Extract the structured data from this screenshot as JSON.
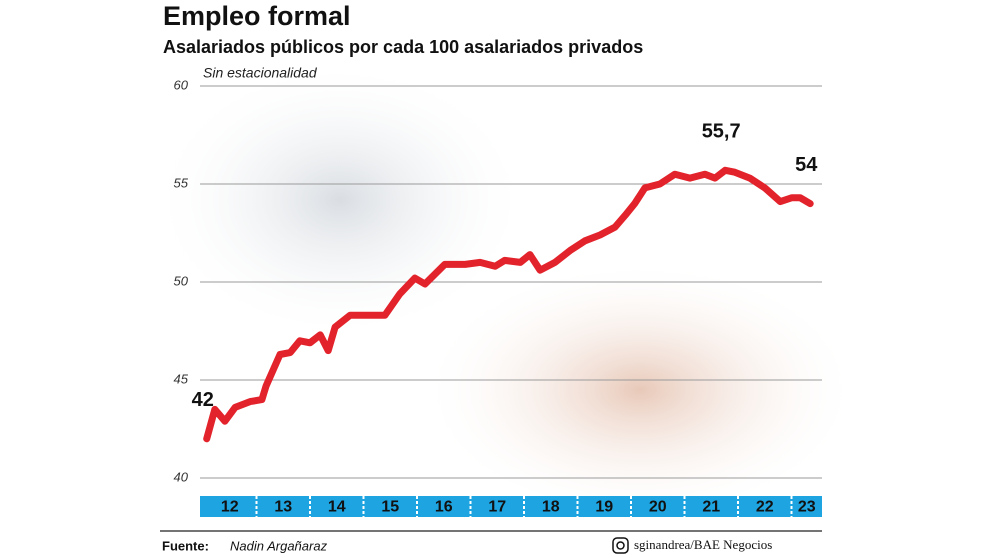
{
  "chart_data": {
    "type": "line",
    "title": "Empleo formal",
    "subtitle": "Asalariados públicos por cada 100 asalariados privados",
    "note": "Sin estacionalidad",
    "source_label": "Fuente:",
    "source": "Nadin Argañaraz",
    "credit": "sginandrea/BAE Negocios",
    "xlim": [
      12,
      23.57
    ],
    "xticks": [
      12,
      13,
      14,
      15,
      16,
      17,
      18,
      19,
      20,
      21,
      22,
      23
    ],
    "ylim": [
      40,
      60
    ],
    "yticks": [
      40,
      45,
      50,
      55,
      60
    ],
    "grid": true,
    "x": [
      12.07,
      12.22,
      12.41,
      12.6,
      12.88,
      13.1,
      13.18,
      13.44,
      13.63,
      13.81,
      14.0,
      14.19,
      14.34,
      14.47,
      14.75,
      15.03,
      15.4,
      15.68,
      15.96,
      16.15,
      16.52,
      16.9,
      17.18,
      17.46,
      17.64,
      17.93,
      18.11,
      18.3,
      18.58,
      18.86,
      19.14,
      19.42,
      19.7,
      19.89,
      20.07,
      20.26,
      20.54,
      20.82,
      21.1,
      21.38,
      21.57,
      21.76,
      21.94,
      22.22,
      22.5,
      22.79,
      23.01,
      23.16,
      23.35
    ],
    "series": [
      {
        "color": "#e3232b",
        "values": [
          42,
          43.5,
          42.9,
          43.6,
          43.9,
          44.0,
          44.7,
          46.3,
          46.4,
          47.0,
          46.9,
          47.3,
          46.5,
          47.7,
          48.3,
          48.3,
          48.3,
          49.4,
          50.2,
          49.9,
          50.9,
          50.9,
          51.0,
          50.8,
          51.1,
          51.0,
          51.4,
          50.6,
          51.0,
          51.6,
          52.1,
          52.4,
          52.8,
          53.4,
          54.0,
          54.8,
          55.0,
          55.5,
          55.3,
          55.5,
          55.3,
          55.7,
          55.6,
          55.3,
          54.8,
          54.1,
          54.3,
          54.3,
          54.0
        ],
        "value_labels": [
          "42",
          null,
          null,
          null,
          null,
          null,
          null,
          null,
          null,
          null,
          null,
          null,
          null,
          null,
          null,
          null,
          null,
          null,
          null,
          null,
          null,
          null,
          null,
          null,
          null,
          null,
          null,
          null,
          null,
          null,
          null,
          null,
          null,
          null,
          null,
          null,
          null,
          null,
          null,
          null,
          null,
          "55,7",
          null,
          null,
          null,
          null,
          null,
          null,
          "54"
        ]
      }
    ],
    "axis_color": "#1ea4e1"
  }
}
